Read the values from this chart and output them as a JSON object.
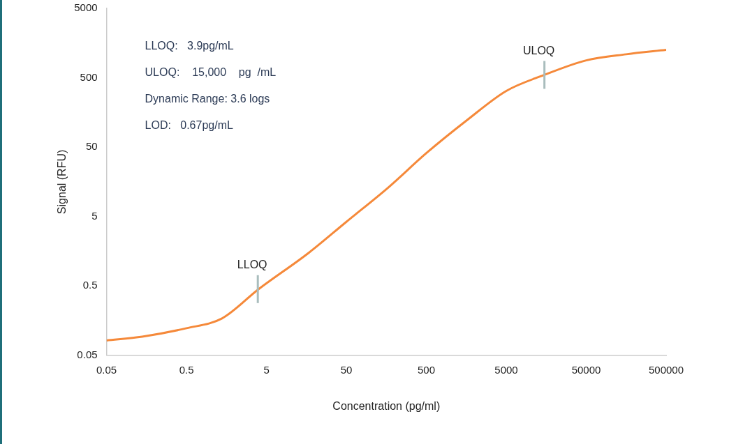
{
  "chart_data": {
    "type": "line",
    "xlabel": "Concentration (pg/ml)",
    "ylabel": "Signal (RFU)",
    "log": "xy",
    "xlim": [
      0.05,
      500000
    ],
    "ylim": [
      0.05,
      5000
    ],
    "xticks": [
      0.05,
      0.5,
      5,
      50,
      500,
      5000,
      50000,
      500000
    ],
    "yticks": [
      0.05,
      0.5,
      5,
      50,
      500,
      5000
    ],
    "grid": false,
    "legend": false,
    "marker": "none",
    "line_style": "solid",
    "series": [
      {
        "color": "#f5893a",
        "x": [
          0.05,
          0.14,
          0.5,
          1.39,
          4,
          16.9,
          50,
          166,
          500,
          1650,
          5000,
          15000,
          50000,
          158000,
          500000
        ],
        "values": [
          0.082,
          0.093,
          0.123,
          0.17,
          0.45,
          1.5,
          4.2,
          13,
          41,
          125,
          323,
          550,
          890,
          1090,
          1260
        ]
      }
    ],
    "annotations": [
      "LLOQ:   3.9pg/mL",
      "ULOQ:    15,000    pg  /mL",
      "Dynamic Range: 3.6 logs",
      "LOD:   0.67pg/mL",
      {
        "text": "LLOQ",
        "x": 3.9,
        "y": 0.45
      },
      {
        "text": "ULOQ",
        "x": 15000,
        "y": 550
      }
    ]
  }
}
